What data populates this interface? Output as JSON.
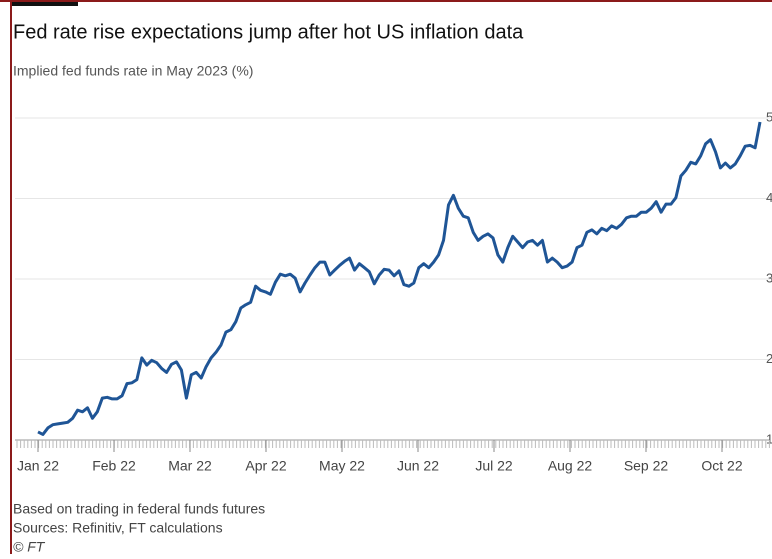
{
  "chart_data": {
    "type": "line",
    "title": "Fed rate rise expectations jump after hot US inflation data",
    "subtitle": "Implied fed funds rate in May 2023 (%)",
    "x_labels": [
      "Jan 22",
      "Feb 22",
      "Mar 22",
      "Apr 22",
      "May 22",
      "Jun 22",
      "Jul 22",
      "Aug 22",
      "Sep 22",
      "Oct 22"
    ],
    "series": [
      {
        "name": "Implied fed funds rate",
        "color": "#1f5596",
        "values": [
          1.1,
          1.07,
          1.15,
          1.19,
          1.2,
          1.21,
          1.22,
          1.27,
          1.37,
          1.35,
          1.4,
          1.27,
          1.35,
          1.52,
          1.53,
          1.51,
          1.51,
          1.55,
          1.7,
          1.71,
          1.75,
          2.02,
          1.93,
          1.99,
          1.96,
          1.89,
          1.84,
          1.94,
          1.97,
          1.87,
          1.52,
          1.81,
          1.84,
          1.77,
          1.91,
          2.02,
          2.09,
          2.18,
          2.34,
          2.37,
          2.47,
          2.64,
          2.68,
          2.71,
          2.91,
          2.86,
          2.84,
          2.81,
          2.96,
          3.06,
          3.04,
          3.06,
          3.01,
          2.84,
          2.95,
          3.05,
          3.14,
          3.21,
          3.21,
          3.05,
          3.11,
          3.17,
          3.22,
          3.26,
          3.11,
          3.19,
          3.14,
          3.09,
          2.94,
          3.05,
          3.12,
          3.11,
          3.04,
          3.1,
          2.93,
          2.91,
          2.95,
          3.14,
          3.19,
          3.14,
          3.21,
          3.3,
          3.48,
          3.92,
          4.04,
          3.88,
          3.78,
          3.76,
          3.58,
          3.48,
          3.53,
          3.56,
          3.51,
          3.3,
          3.21,
          3.39,
          3.53,
          3.46,
          3.39,
          3.46,
          3.48,
          3.42,
          3.48,
          3.21,
          3.26,
          3.21,
          3.14,
          3.16,
          3.21,
          3.39,
          3.42,
          3.58,
          3.61,
          3.56,
          3.63,
          3.6,
          3.66,
          3.63,
          3.68,
          3.76,
          3.78,
          3.78,
          3.83,
          3.83,
          3.88,
          3.96,
          3.83,
          3.93,
          3.93,
          4.01,
          4.28,
          4.35,
          4.45,
          4.43,
          4.53,
          4.68,
          4.73,
          4.58,
          4.38,
          4.44,
          4.38,
          4.43,
          4.53,
          4.65,
          4.66,
          4.63,
          4.95
        ]
      }
    ],
    "ylim": [
      1,
      5
    ],
    "yticks": [
      1,
      2,
      3,
      4,
      5
    ],
    "grid": true,
    "notes": [
      "Based on trading in federal funds futures",
      "Sources: Refinitiv, FT calculations",
      "© FT"
    ]
  }
}
